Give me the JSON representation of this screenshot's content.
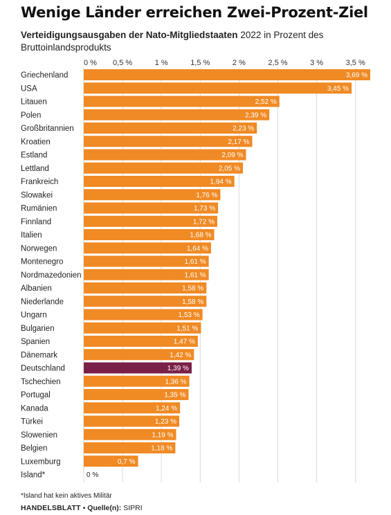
{
  "title": "Wenige Länder erreichen Zwei-Prozent-Ziel",
  "subtitle_bold": "Verteidigungsausgaben der Nato-Mitgliedstaaten",
  "subtitle_rest": " 2022 in Prozent des Bruttoinlandsprodukts",
  "footnote": "*Island hat kein aktives Militär",
  "source": {
    "brand": "HANDELSBLATT",
    "separator": " • ",
    "label": "Quelle(n):",
    "value": " SIPRI"
  },
  "colors": {
    "bar": "#f08a24",
    "highlight": "#7a2048",
    "gridline": "#d9d9d9"
  },
  "chart_data": {
    "type": "bar",
    "orientation": "horizontal",
    "categories": [
      "Griechenland",
      "USA",
      "Litauen",
      "Polen",
      "Großbritannien",
      "Kroatien",
      "Estland",
      "Lettland",
      "Frankreich",
      "Slowakei",
      "Rumänien",
      "Finnland",
      "Italien",
      "Norwegen",
      "Montenegro",
      "Nordmazedonien",
      "Albanien",
      "Niederlande",
      "Ungarn",
      "Bulgarien",
      "Spanien",
      "Dänemark",
      "Deutschland",
      "Tschechien",
      "Portugal",
      "Kanada",
      "Türkei",
      "Slowenien",
      "Belgien",
      "Luxemburg",
      "Island*"
    ],
    "values": [
      3.69,
      3.45,
      2.52,
      2.39,
      2.23,
      2.17,
      2.09,
      2.05,
      1.94,
      1.76,
      1.73,
      1.72,
      1.68,
      1.64,
      1.61,
      1.61,
      1.58,
      1.58,
      1.53,
      1.51,
      1.47,
      1.42,
      1.39,
      1.36,
      1.35,
      1.24,
      1.23,
      1.19,
      1.18,
      0.7,
      0
    ],
    "value_labels": [
      "3,69 %",
      "3,45 %",
      "2,52 %",
      "2,39 %",
      "2,23 %",
      "2,17 %",
      "2,09 %",
      "2,05 %",
      "1,94 %",
      "1,76 %",
      "1,73 %",
      "1,72 %",
      "1,68 %",
      "1,64 %",
      "1,61 %",
      "1,61 %",
      "1,58 %",
      "1,58 %",
      "1,53 %",
      "1,51 %",
      "1,47 %",
      "1,42 %",
      "1,39 %",
      "1,36 %",
      "1,35 %",
      "1,24 %",
      "1,23 %",
      "1,19 %",
      "1,18 %",
      "0,7 %",
      "0 %"
    ],
    "highlight": "Deutschland",
    "xticks": [
      0,
      0.5,
      1,
      1.5,
      2,
      2.5,
      3,
      3.5
    ],
    "xtick_labels": [
      "0 %",
      "0,5 %",
      "1 %",
      "1,5 %",
      "2 %",
      "2,5 %",
      "3 %",
      "3,5 %"
    ],
    "xlim": [
      0,
      3.69
    ],
    "grid": true,
    "xaxis_position": "top"
  }
}
